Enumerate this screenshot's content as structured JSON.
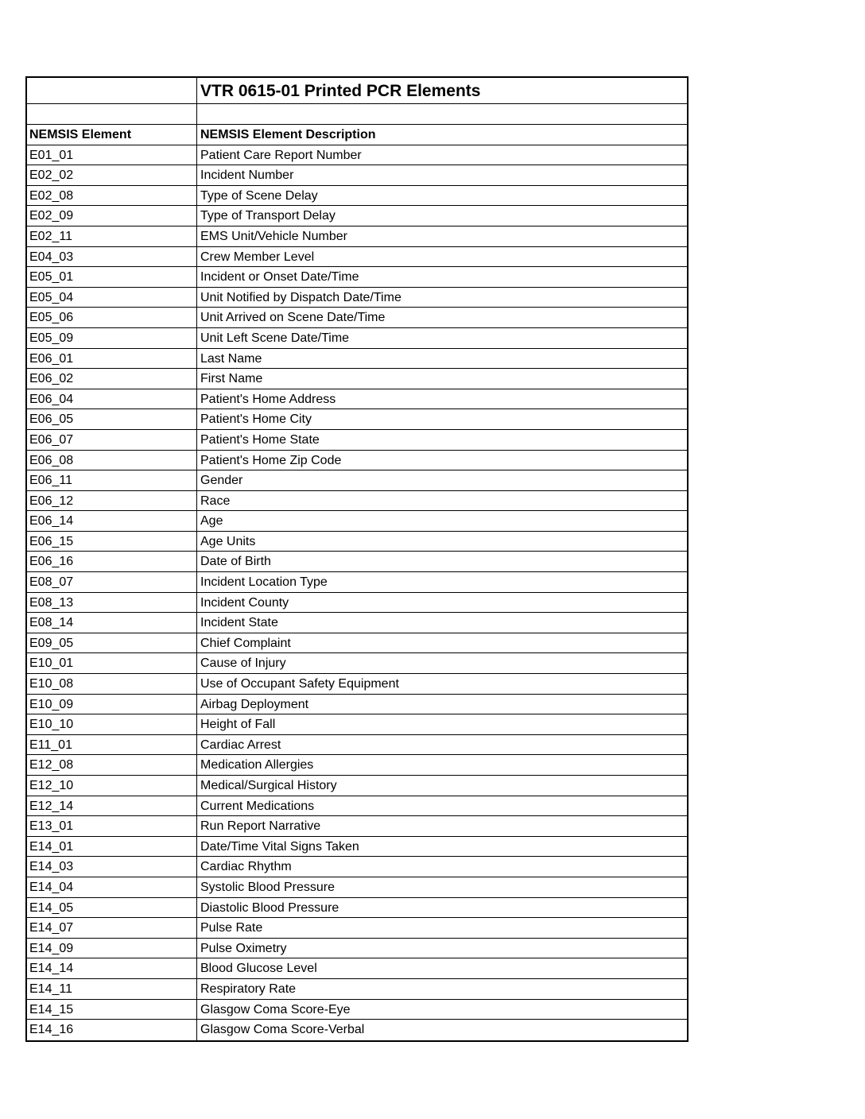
{
  "title": "VTR 0615-01 Printed PCR Elements",
  "headers": {
    "element": "NEMSIS Element",
    "description": "NEMSIS Element Description"
  },
  "rows": [
    [
      "E01_01",
      "Patient Care Report Number"
    ],
    [
      "E02_02",
      "Incident Number"
    ],
    [
      "E02_08",
      "Type of Scene Delay"
    ],
    [
      "E02_09",
      "Type of Transport Delay"
    ],
    [
      "E02_11",
      "EMS Unit/Vehicle  Number"
    ],
    [
      "E04_03",
      "Crew Member Level"
    ],
    [
      "E05_01",
      "Incident or Onset  Date/Time"
    ],
    [
      "E05_04",
      "Unit Notified by Dispatch Date/Time"
    ],
    [
      "E05_06",
      "Unit Arrived on Scene Date/Time"
    ],
    [
      "E05_09",
      "Unit Left Scene Date/Time"
    ],
    [
      "E06_01",
      "Last Name"
    ],
    [
      "E06_02",
      "First Name"
    ],
    [
      "E06_04",
      "Patient's Home Address"
    ],
    [
      "E06_05",
      "Patient's Home City"
    ],
    [
      "E06_07",
      "Patient's Home State"
    ],
    [
      "E06_08",
      "Patient's Home Zip Code"
    ],
    [
      "E06_11",
      "Gender"
    ],
    [
      "E06_12",
      "Race"
    ],
    [
      "E06_14",
      "Age"
    ],
    [
      "E06_15",
      "Age Units"
    ],
    [
      "E06_16",
      "Date of Birth"
    ],
    [
      "E08_07",
      "Incident Location Type"
    ],
    [
      "E08_13",
      "Incident County"
    ],
    [
      "E08_14",
      "Incident State"
    ],
    [
      "E09_05",
      "Chief Complaint"
    ],
    [
      "E10_01",
      "Cause of Injury"
    ],
    [
      "E10_08",
      "Use of Occupant Safety Equipment"
    ],
    [
      "E10_09",
      "Airbag Deployment"
    ],
    [
      "E10_10",
      "Height of Fall"
    ],
    [
      "E11_01",
      "Cardiac Arrest"
    ],
    [
      "E12_08",
      "Medication Allergies"
    ],
    [
      "E12_10",
      "Medical/Surgical History"
    ],
    [
      "E12_14",
      "Current Medications"
    ],
    [
      "E13_01",
      "Run Report Narrative"
    ],
    [
      "E14_01",
      "Date/Time Vital Signs Taken"
    ],
    [
      "E14_03",
      "Cardiac Rhythm"
    ],
    [
      "E14_04",
      "Systolic Blood Pressure"
    ],
    [
      "E14_05",
      "Diastolic Blood Pressure"
    ],
    [
      "E14_07",
      "Pulse Rate"
    ],
    [
      "E14_09",
      "Pulse Oximetry"
    ],
    [
      "E14_14",
      "Blood Glucose Level"
    ],
    [
      "E14_11",
      "Respiratory Rate"
    ],
    [
      "E14_15",
      "Glasgow Coma Score-Eye"
    ],
    [
      "E14_16",
      "Glasgow Coma Score-Verbal"
    ]
  ]
}
